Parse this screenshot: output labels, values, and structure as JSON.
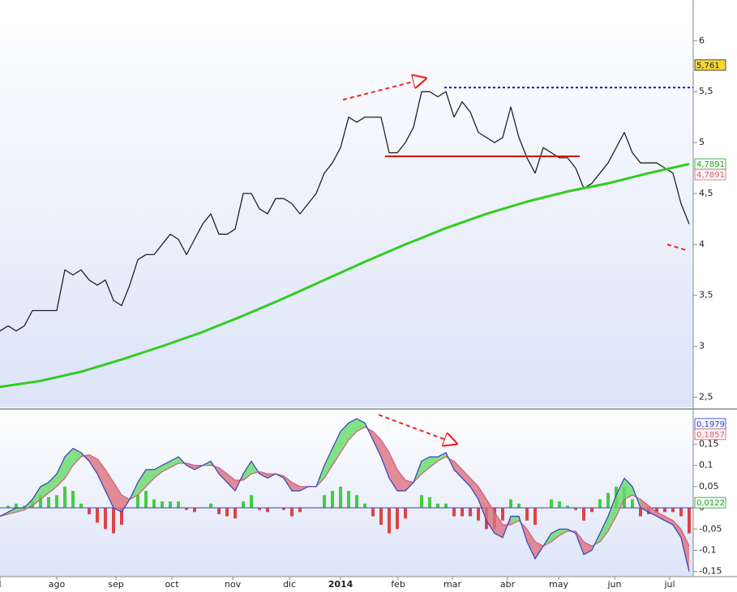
{
  "chart_data": [
    {
      "type": "line",
      "x": [
        0,
        1,
        2,
        3,
        4,
        5,
        6,
        7,
        8,
        9,
        10,
        11,
        12,
        13,
        14,
        15,
        16,
        17,
        18,
        19,
        20,
        21,
        22,
        23,
        24,
        25,
        26,
        27,
        28,
        29,
        30,
        31,
        32,
        33,
        34,
        35,
        36,
        37,
        38,
        39,
        40,
        41,
        42,
        43,
        44,
        45,
        46,
        47,
        48,
        49,
        50,
        51,
        52,
        53,
        54,
        55,
        56,
        57,
        58,
        59,
        60,
        61,
        62,
        63,
        64,
        65,
        66,
        67,
        68,
        69,
        70,
        71,
        72,
        73,
        74,
        75,
        76,
        77,
        78,
        79,
        80,
        81,
        82,
        83,
        84,
        85
      ],
      "series": [
        {
          "color": "#222222",
          "values": [
            3.15,
            3.2,
            3.15,
            3.2,
            3.35,
            3.35,
            3.35,
            3.35,
            3.75,
            3.7,
            3.75,
            3.65,
            3.6,
            3.65,
            3.45,
            3.4,
            3.6,
            3.85,
            3.9,
            3.9,
            4.0,
            4.1,
            4.05,
            3.9,
            4.05,
            4.2,
            4.3,
            4.1,
            4.1,
            4.15,
            4.5,
            4.5,
            4.35,
            4.3,
            4.45,
            4.45,
            4.4,
            4.3,
            4.4,
            4.5,
            4.7,
            4.8,
            4.95,
            5.25,
            5.2,
            5.25,
            5.25,
            5.25,
            4.9,
            4.9,
            5.0,
            5.15,
            5.5,
            5.5,
            5.45,
            5.5,
            5.25,
            5.4,
            5.3,
            5.1,
            5.05,
            5.0,
            5.05,
            5.35,
            5.05,
            4.85,
            4.7,
            4.95,
            4.9,
            4.85,
            4.85,
            4.75,
            4.55,
            4.6,
            4.7,
            4.8,
            4.95,
            5.1,
            4.9,
            4.8,
            4.8,
            4.8,
            4.75,
            4.7,
            4.4,
            4.2
          ]
        },
        {
          "color": "#33cc22",
          "x": [
            0,
            5,
            10,
            15,
            20,
            25,
            30,
            35,
            40,
            45,
            50,
            55,
            60,
            65,
            70,
            75,
            80,
            85
          ],
          "values": [
            2.6,
            2.66,
            2.75,
            2.87,
            3.0,
            3.14,
            3.3,
            3.47,
            3.65,
            3.83,
            4.0,
            4.16,
            4.3,
            4.42,
            4.52,
            4.6,
            4.7,
            4.79
          ]
        }
      ],
      "xlim": [
        0,
        85.5
      ],
      "ylim": [
        2.4,
        6.4
      ],
      "yticks": [
        {
          "value": 2.5,
          "label": "2,5"
        },
        3,
        {
          "value": 3.5,
          "label": "3,5"
        },
        4,
        {
          "value": 4.5,
          "label": "4,5"
        },
        5,
        {
          "value": 5.5,
          "label": "5,5"
        },
        6
      ],
      "lines": [
        {
          "x": [
            47.5,
            71.5
          ],
          "y": [
            4.865,
            4.865
          ],
          "color": "#dd1111",
          "style": "solid"
        },
        {
          "x": [
            54.8,
            85.5
          ],
          "y": [
            5.54,
            5.54
          ],
          "color": "#1111dd",
          "style": "dotted"
        },
        {
          "x": [
            42.3,
            52.5
          ],
          "y": [
            5.42,
            5.63
          ],
          "color": "#ee2222",
          "style": "dashed",
          "arrow": true
        },
        {
          "x": [
            82.3,
            84.8
          ],
          "y": [
            4.0,
            3.94
          ],
          "color": "#ee2222",
          "style": "dashed"
        }
      ],
      "price_labels": [
        {
          "value": 5.761,
          "label": "5,761",
          "color": "#222222",
          "fill": "#f5d633"
        },
        {
          "value": 4.7891,
          "label": "4,7891",
          "color": "#2a9a2a",
          "fill": "#f4fff4"
        },
        {
          "value": 4.7891,
          "label": "4,7891",
          "color": "#d06070",
          "fill": "#fff4f6"
        }
      ]
    },
    {
      "type": "macd",
      "x": [
        0,
        1,
        2,
        3,
        4,
        5,
        6,
        7,
        8,
        9,
        10,
        11,
        12,
        13,
        14,
        15,
        16,
        17,
        18,
        19,
        20,
        21,
        22,
        23,
        24,
        25,
        26,
        27,
        28,
        29,
        30,
        31,
        32,
        33,
        34,
        35,
        36,
        37,
        38,
        39,
        40,
        41,
        42,
        43,
        44,
        45,
        46,
        47,
        48,
        49,
        50,
        51,
        52,
        53,
        54,
        55,
        56,
        57,
        58,
        59,
        60,
        61,
        62,
        63,
        64,
        65,
        66,
        67,
        68,
        69,
        70,
        71,
        72,
        73,
        74,
        75,
        76,
        77,
        78,
        79,
        80,
        81,
        82,
        83,
        84,
        85
      ],
      "series": [
        {
          "color": "#3040c0",
          "values": [
            -0.02,
            -0.01,
            0.0,
            0.0,
            0.02,
            0.05,
            0.06,
            0.08,
            0.12,
            0.14,
            0.13,
            0.11,
            0.08,
            0.04,
            0.0,
            -0.01,
            0.02,
            0.06,
            0.09,
            0.09,
            0.1,
            0.11,
            0.12,
            0.1,
            0.09,
            0.1,
            0.11,
            0.08,
            0.06,
            0.04,
            0.08,
            0.11,
            0.08,
            0.07,
            0.08,
            0.07,
            0.04,
            0.04,
            0.05,
            0.05,
            0.1,
            0.14,
            0.18,
            0.2,
            0.21,
            0.2,
            0.16,
            0.12,
            0.07,
            0.04,
            0.04,
            0.06,
            0.11,
            0.12,
            0.12,
            0.13,
            0.09,
            0.07,
            0.05,
            0.02,
            -0.03,
            -0.06,
            -0.07,
            -0.02,
            -0.02,
            -0.08,
            -0.12,
            -0.09,
            -0.06,
            -0.05,
            -0.05,
            -0.06,
            -0.11,
            -0.1,
            -0.06,
            -0.02,
            0.03,
            0.07,
            0.05,
            0.0,
            -0.01,
            -0.02,
            -0.03,
            -0.04,
            -0.07,
            -0.15
          ]
        },
        {
          "color": "#d06070",
          "values": [
            -0.02,
            -0.015,
            -0.01,
            -0.005,
            0.005,
            0.02,
            0.035,
            0.05,
            0.07,
            0.1,
            0.12,
            0.125,
            0.115,
            0.09,
            0.06,
            0.03,
            0.02,
            0.03,
            0.05,
            0.07,
            0.085,
            0.095,
            0.105,
            0.105,
            0.1,
            0.1,
            0.1,
            0.095,
            0.08,
            0.065,
            0.065,
            0.08,
            0.085,
            0.08,
            0.08,
            0.075,
            0.06,
            0.05,
            0.05,
            0.05,
            0.07,
            0.1,
            0.13,
            0.16,
            0.18,
            0.19,
            0.18,
            0.16,
            0.13,
            0.09,
            0.065,
            0.06,
            0.08,
            0.095,
            0.11,
            0.12,
            0.11,
            0.09,
            0.07,
            0.05,
            0.02,
            -0.01,
            -0.04,
            -0.04,
            -0.03,
            -0.05,
            -0.08,
            -0.09,
            -0.08,
            -0.065,
            -0.055,
            -0.055,
            -0.08,
            -0.09,
            -0.08,
            -0.055,
            -0.02,
            0.02,
            0.03,
            0.02,
            0.005,
            -0.01,
            -0.02,
            -0.03,
            -0.05,
            -0.09
          ]
        }
      ],
      "fill_colors": [
        "#66d966",
        "#dd7080"
      ],
      "histogram": {
        "up_color": "#44cc44",
        "down_color": "#dd4444",
        "values": [
          0,
          0.005,
          0.01,
          0.005,
          0.015,
          0.03,
          0.025,
          0.03,
          0.05,
          0.04,
          0.01,
          -0.015,
          -0.035,
          -0.05,
          -0.06,
          -0.04,
          0,
          0.03,
          0.04,
          0.02,
          0.015,
          0.015,
          0.015,
          -0.005,
          -0.01,
          0,
          0.01,
          -0.015,
          -0.02,
          -0.025,
          0.015,
          0.03,
          -0.005,
          -0.01,
          0,
          -0.005,
          -0.02,
          -0.01,
          0,
          0,
          0.03,
          0.04,
          0.05,
          0.04,
          0.03,
          0.01,
          -0.02,
          -0.04,
          -0.06,
          -0.05,
          -0.025,
          0,
          0.03,
          0.025,
          0.01,
          0.01,
          -0.02,
          -0.02,
          -0.02,
          -0.03,
          -0.05,
          -0.05,
          -0.03,
          0.02,
          0.01,
          -0.03,
          -0.04,
          0,
          0.02,
          0.015,
          0.005,
          -0.005,
          -0.03,
          -0.01,
          0.02,
          0.035,
          0.05,
          0.05,
          0.02,
          -0.02,
          -0.015,
          -0.01,
          -0.01,
          -0.01,
          -0.02,
          -0.06
        ]
      },
      "xlim": [
        0,
        85.5
      ],
      "ylim": [
        -0.162,
        0.229
      ],
      "yticks": [
        {
          "value": -0.15,
          "label": "-0,15"
        },
        {
          "value": -0.1,
          "label": "-0,1"
        },
        {
          "value": -0.05,
          "label": "-0,05"
        },
        0,
        {
          "value": 0.05,
          "label": "0,05"
        },
        {
          "value": 0.1,
          "label": "0,1"
        },
        {
          "value": 0.15,
          "label": "0,15"
        }
      ],
      "xticks": [
        {
          "value": 0,
          "label": "l"
        },
        {
          "value": 7,
          "label": "ago"
        },
        {
          "value": 14.3,
          "label": "sep"
        },
        {
          "value": 21.2,
          "label": "oct"
        },
        {
          "value": 28.7,
          "label": "nov"
        },
        {
          "value": 35.7,
          "label": "dic"
        },
        {
          "value": 42,
          "label": "2014"
        },
        {
          "value": 49.1,
          "label": "feb"
        },
        {
          "value": 55.8,
          "label": "mar"
        },
        {
          "value": 62.6,
          "label": "abr"
        },
        {
          "value": 68.9,
          "label": "may"
        },
        {
          "value": 75.8,
          "label": "jun"
        },
        {
          "value": 82.6,
          "label": "jul"
        }
      ],
      "lines": [
        {
          "x": [
            46.7,
            56.3
          ],
          "y": [
            0.219,
            0.151
          ],
          "color": "#ee2222",
          "style": "dashed",
          "arrow": true
        }
      ],
      "price_labels": [
        {
          "value": 0.1979,
          "label": "0,1979",
          "color": "#3040c0",
          "fill": "#f2f4ff"
        },
        {
          "value": 0.1857,
          "label": "0,1857",
          "color": "#d06070",
          "fill": "#fff4f6"
        },
        {
          "value": 0.0122,
          "label": "0,0122",
          "color": "#2a9a2a",
          "fill": "#f0fff0"
        }
      ]
    }
  ]
}
